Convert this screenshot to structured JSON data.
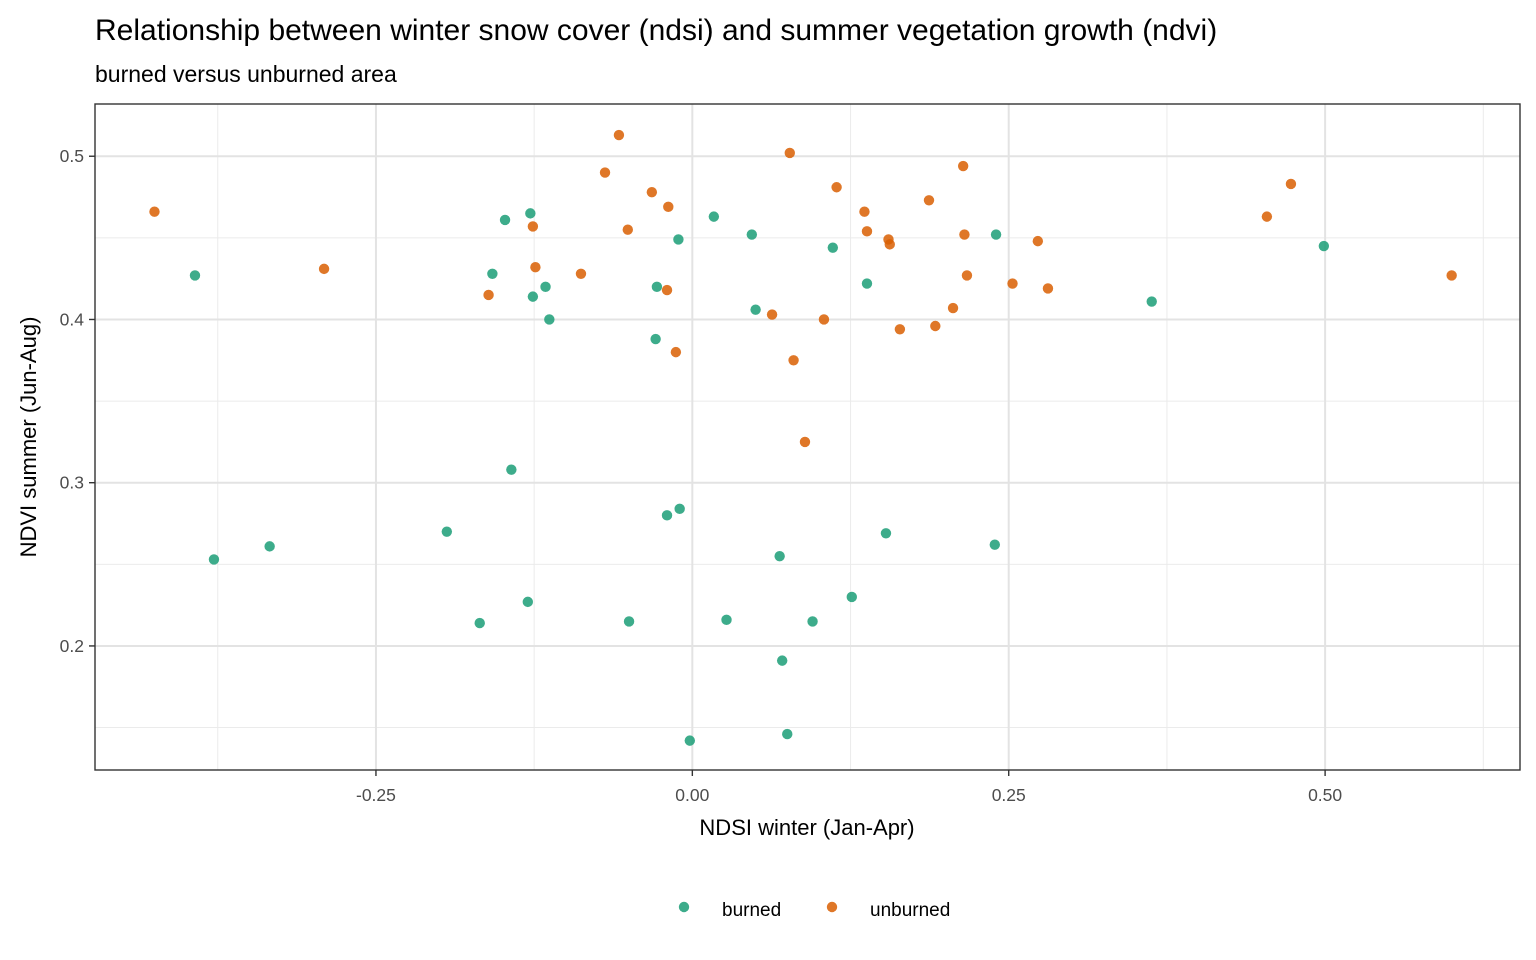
{
  "chart_data": {
    "type": "scatter",
    "title": "Relationship between winter snow cover (ndsi) and summer vegetation growth (ndvi)",
    "subtitle": "burned versus unburned area",
    "xlabel": "NDSI winter (Jan-Apr)",
    "ylabel": "NDVI summer (Jun-Aug)",
    "xlim": [
      -0.472,
      0.654
    ],
    "ylim": [
      0.124,
      0.532
    ],
    "x_ticks": [
      -0.25,
      0.0,
      0.25,
      0.5
    ],
    "x_tick_labels": [
      "-0.25",
      "0.00",
      "0.25",
      "0.50"
    ],
    "y_ticks": [
      0.2,
      0.3,
      0.4,
      0.5
    ],
    "y_tick_labels": [
      "0.2",
      "0.3",
      "0.4",
      "0.5"
    ],
    "grid": true,
    "legend_position": "bottom",
    "series": [
      {
        "name": "burned",
        "color": "#1b9e77",
        "points": [
          [
            -0.393,
            0.427
          ],
          [
            -0.378,
            0.253
          ],
          [
            -0.334,
            0.261
          ],
          [
            -0.194,
            0.27
          ],
          [
            -0.168,
            0.214
          ],
          [
            -0.158,
            0.428
          ],
          [
            -0.148,
            0.461
          ],
          [
            -0.143,
            0.308
          ],
          [
            -0.13,
            0.227
          ],
          [
            -0.128,
            0.465
          ],
          [
            -0.126,
            0.414
          ],
          [
            -0.116,
            0.42
          ],
          [
            -0.113,
            0.4
          ],
          [
            -0.05,
            0.215
          ],
          [
            -0.029,
            0.388
          ],
          [
            -0.028,
            0.42
          ],
          [
            -0.02,
            0.28
          ],
          [
            -0.01,
            0.284
          ],
          [
            -0.011,
            0.449
          ],
          [
            -0.002,
            0.142
          ],
          [
            0.017,
            0.463
          ],
          [
            0.027,
            0.216
          ],
          [
            0.047,
            0.452
          ],
          [
            0.05,
            0.406
          ],
          [
            0.069,
            0.255
          ],
          [
            0.071,
            0.191
          ],
          [
            0.075,
            0.146
          ],
          [
            0.095,
            0.215
          ],
          [
            0.126,
            0.23
          ],
          [
            0.111,
            0.444
          ],
          [
            0.138,
            0.422
          ],
          [
            0.153,
            0.269
          ],
          [
            0.239,
            0.262
          ],
          [
            0.24,
            0.452
          ],
          [
            0.363,
            0.411
          ],
          [
            0.499,
            0.445
          ]
        ]
      },
      {
        "name": "unburned",
        "color": "#d95f02",
        "points": [
          [
            -0.425,
            0.466
          ],
          [
            -0.291,
            0.431
          ],
          [
            -0.161,
            0.415
          ],
          [
            -0.126,
            0.457
          ],
          [
            -0.124,
            0.432
          ],
          [
            -0.088,
            0.428
          ],
          [
            -0.069,
            0.49
          ],
          [
            -0.058,
            0.513
          ],
          [
            -0.051,
            0.455
          ],
          [
            -0.032,
            0.478
          ],
          [
            -0.02,
            0.418
          ],
          [
            -0.019,
            0.469
          ],
          [
            -0.013,
            0.38
          ],
          [
            0.063,
            0.403
          ],
          [
            0.077,
            0.502
          ],
          [
            0.08,
            0.375
          ],
          [
            0.089,
            0.325
          ],
          [
            0.104,
            0.4
          ],
          [
            0.114,
            0.481
          ],
          [
            0.136,
            0.466
          ],
          [
            0.138,
            0.454
          ],
          [
            0.155,
            0.449
          ],
          [
            0.156,
            0.446
          ],
          [
            0.164,
            0.394
          ],
          [
            0.187,
            0.473
          ],
          [
            0.192,
            0.396
          ],
          [
            0.206,
            0.407
          ],
          [
            0.214,
            0.494
          ],
          [
            0.215,
            0.452
          ],
          [
            0.217,
            0.427
          ],
          [
            0.253,
            0.422
          ],
          [
            0.273,
            0.448
          ],
          [
            0.281,
            0.419
          ],
          [
            0.454,
            0.463
          ],
          [
            0.473,
            0.483
          ],
          [
            0.6,
            0.427
          ]
        ]
      }
    ]
  }
}
